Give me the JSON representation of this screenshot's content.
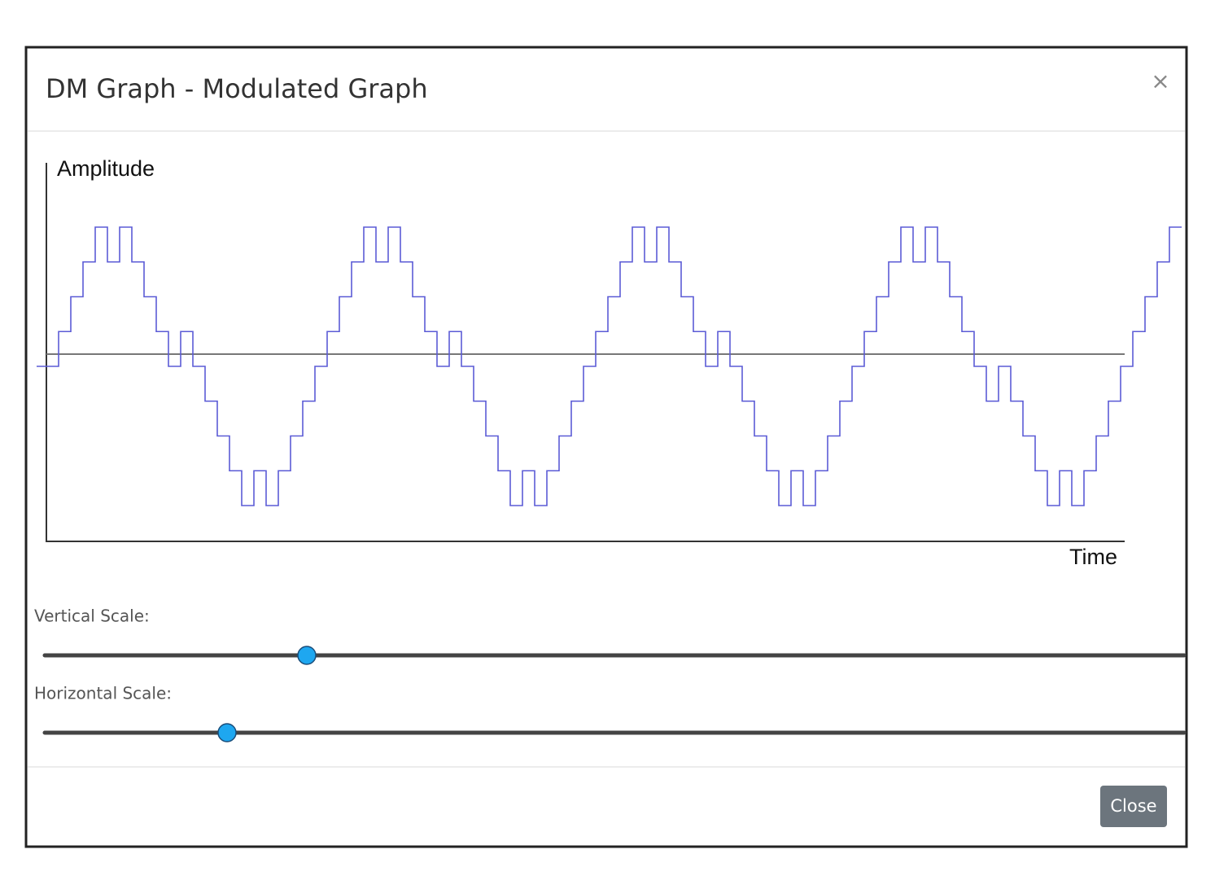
{
  "modal": {
    "title": "DM Graph - Modulated Graph",
    "close_icon": "×",
    "close_button": "Close"
  },
  "graph": {
    "y_label": "Amplitude",
    "x_label": "Time",
    "steps": [
      0,
      1,
      2,
      3,
      4,
      3,
      4,
      3,
      2,
      1,
      0,
      1,
      0,
      -1,
      -2,
      -3,
      -4,
      -3,
      -4,
      -3,
      -2,
      -1,
      0,
      1,
      2,
      3,
      4,
      3,
      4,
      3,
      2,
      1,
      0,
      1,
      0,
      -1,
      -2,
      -3,
      -4,
      -3,
      -4,
      -3,
      -2,
      -1,
      0,
      1,
      2,
      3,
      4,
      3,
      4,
      3,
      2,
      1,
      0,
      1,
      0,
      -1,
      -2,
      -3,
      -4,
      -3,
      -4,
      -3,
      -2,
      -1,
      0,
      1,
      2,
      3,
      4,
      3,
      4,
      3,
      2,
      1,
      0,
      -1,
      0,
      -1,
      -2,
      -3,
      -4,
      -3,
      -4,
      -3,
      -2,
      -1,
      0,
      1,
      2,
      3,
      4
    ],
    "color": "#5b5bd6"
  },
  "sliders": [
    {
      "label": "Vertical Scale:",
      "value": 23,
      "min": 0,
      "max": 100
    },
    {
      "label": "Horizontal Scale:",
      "value": 16,
      "min": 0,
      "max": 100
    }
  ]
}
